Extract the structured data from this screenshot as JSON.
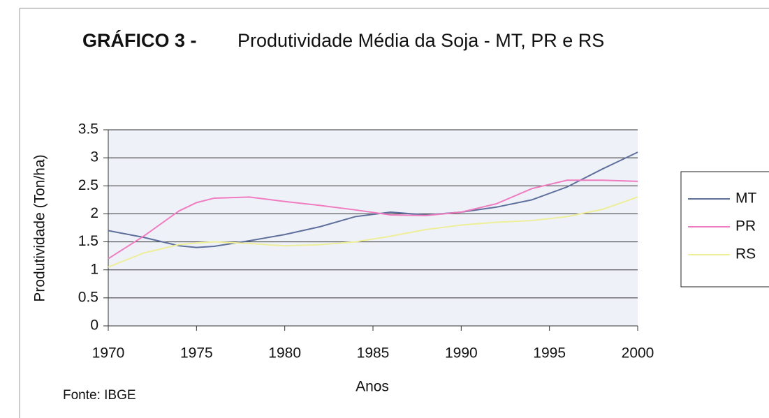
{
  "chart_data": {
    "type": "line",
    "title": "GRÁFICO 3 -",
    "subtitle": "Produtividade Média da Soja - MT, PR e RS",
    "x_label": "Anos",
    "y_label": "Produtividade (Ton/ha)",
    "note": "Fonte: IBGE",
    "x": [
      1970,
      1972,
      1974,
      1975,
      1976,
      1978,
      1980,
      1982,
      1984,
      1986,
      1988,
      1990,
      1992,
      1994,
      1996,
      1998,
      2000
    ],
    "series": [
      {
        "name": "MT",
        "color": "#5f6f9c",
        "values": [
          1.7,
          1.58,
          1.43,
          1.4,
          1.42,
          1.52,
          1.63,
          1.77,
          1.95,
          2.03,
          1.98,
          2.03,
          2.12,
          2.25,
          2.48,
          2.8,
          3.1
        ]
      },
      {
        "name": "PR",
        "color": "#f07cc0",
        "values": [
          1.2,
          1.6,
          2.05,
          2.2,
          2.28,
          2.3,
          2.22,
          2.15,
          2.07,
          1.98,
          1.97,
          2.03,
          2.18,
          2.45,
          2.6,
          2.6,
          2.58
        ]
      },
      {
        "name": "RS",
        "color": "#eeee9a",
        "values": [
          1.05,
          1.3,
          1.45,
          1.48,
          1.5,
          1.47,
          1.43,
          1.45,
          1.5,
          1.6,
          1.72,
          1.8,
          1.85,
          1.88,
          1.95,
          2.08,
          2.3
        ]
      }
    ],
    "xlim": [
      1970,
      2000
    ],
    "xticks": [
      1970,
      1975,
      1980,
      1985,
      1990,
      1995,
      2000
    ],
    "ylim": [
      0,
      3.5
    ],
    "yticks": [
      0,
      0.5,
      1,
      1.5,
      2,
      2.5,
      3,
      3.5
    ],
    "grid": true,
    "legend": "right"
  }
}
